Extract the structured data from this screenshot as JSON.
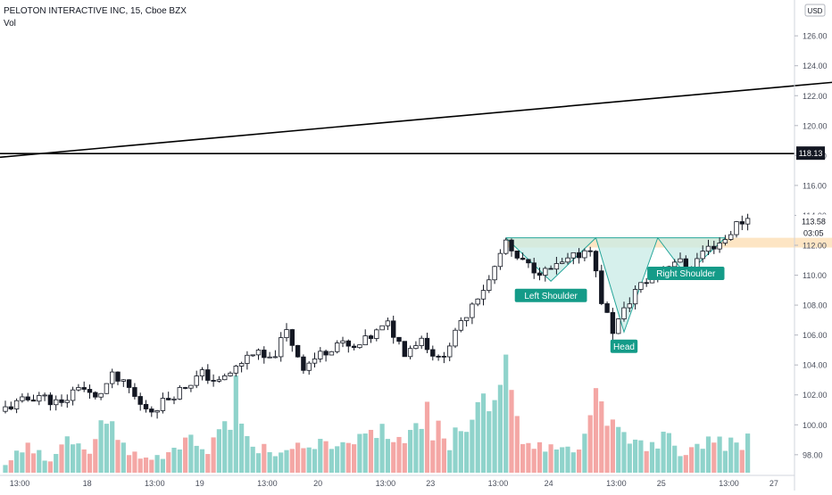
{
  "header": {
    "title": "PELOTON INTERACTIVE INC, 15, Cboe BZX",
    "volume_label": "Vol"
  },
  "currency": "USD",
  "price_labels": {
    "resistance": "118.13",
    "last_price": "113.58",
    "countdown": "03:05"
  },
  "colors": {
    "up": "#26a69a",
    "down": "#ef5350",
    "vol_up": "#8fd3cb",
    "vol_down": "#f4a7a5",
    "pattern_fill": "#c8ebe6",
    "pattern_line": "#26a69a",
    "neckline_zone": "#fde5c4",
    "label_bg": "#149b88"
  },
  "chart_data": {
    "type": "candlestick",
    "title": "PELOTON INTERACTIVE INC, 15, Cboe BZX",
    "ylim": [
      96.5,
      127.5
    ],
    "y_ticks": [
      98,
      100,
      102,
      104,
      106,
      108,
      110,
      112,
      114,
      116,
      118,
      120,
      122,
      124,
      126
    ],
    "x_tick_labels": [
      "13:00",
      "18",
      "13:00",
      "19",
      "13:00",
      "20",
      "13:00",
      "23",
      "13:00",
      "24",
      "13:00",
      "25",
      "13:00",
      "27"
    ],
    "grid": false,
    "close_path": [
      [
        0,
        101.1
      ],
      [
        6,
        102.0
      ],
      [
        10,
        101.3
      ],
      [
        13,
        102.7
      ],
      [
        16,
        101.7
      ],
      [
        19,
        103.2
      ],
      [
        22,
        102.4
      ],
      [
        24,
        101.3
      ],
      [
        26,
        101.0
      ],
      [
        29,
        101.8
      ],
      [
        32,
        102.6
      ],
      [
        35,
        103.4
      ],
      [
        38,
        102.8
      ],
      [
        41,
        103.8
      ],
      [
        44,
        104.9
      ],
      [
        47,
        104.2
      ],
      [
        50,
        106.2
      ],
      [
        53,
        103.9
      ],
      [
        56,
        104.7
      ],
      [
        59,
        105.5
      ],
      [
        62,
        105.0
      ],
      [
        65,
        105.9
      ],
      [
        68,
        106.7
      ],
      [
        71,
        104.9
      ],
      [
        74,
        105.8
      ],
      [
        77,
        104.3
      ],
      [
        80,
        106.0
      ],
      [
        83,
        108.2
      ],
      [
        86,
        109.6
      ],
      [
        89,
        112.3
      ],
      [
        90,
        111.3
      ],
      [
        93,
        110.6
      ],
      [
        96,
        110.2
      ],
      [
        99,
        110.7
      ],
      [
        102,
        111.4
      ],
      [
        104,
        111.9
      ],
      [
        106,
        108.3
      ],
      [
        108,
        106.3
      ],
      [
        110,
        107.6
      ],
      [
        112,
        109.0
      ],
      [
        114,
        109.6
      ],
      [
        116,
        110.3
      ],
      [
        119,
        111.0
      ],
      [
        122,
        110.5
      ],
      [
        124,
        111.6
      ],
      [
        126,
        112.0
      ],
      [
        128,
        112.4
      ],
      [
        130,
        113.4
      ],
      [
        132,
        113.8
      ]
    ],
    "volume_profile": [
      [
        0,
        0.8
      ],
      [
        4,
        1.8
      ],
      [
        8,
        1.2
      ],
      [
        12,
        2.5
      ],
      [
        16,
        2.0
      ],
      [
        18,
        4.2
      ],
      [
        20,
        2.5
      ],
      [
        22,
        1.2
      ],
      [
        24,
        1.5
      ],
      [
        27,
        1.0
      ],
      [
        30,
        1.4
      ],
      [
        33,
        2.3
      ],
      [
        36,
        1.8
      ],
      [
        39,
        3.2
      ],
      [
        41,
        6.0
      ],
      [
        43,
        3.5
      ],
      [
        45,
        2.0
      ],
      [
        48,
        1.5
      ],
      [
        51,
        2.2
      ],
      [
        54,
        1.6
      ],
      [
        57,
        2.5
      ],
      [
        60,
        1.7
      ],
      [
        63,
        2.1
      ],
      [
        66,
        3.2
      ],
      [
        69,
        2.6
      ],
      [
        72,
        2.4
      ],
      [
        75,
        4.5
      ],
      [
        77,
        3.0
      ],
      [
        79,
        2.6
      ],
      [
        82,
        3.2
      ],
      [
        85,
        4.5
      ],
      [
        86,
        6.6
      ],
      [
        88,
        8.9
      ],
      [
        90,
        5.0
      ],
      [
        92,
        2.0
      ],
      [
        96,
        1.6
      ],
      [
        100,
        1.6
      ],
      [
        103,
        2.5
      ],
      [
        105,
        6.2
      ],
      [
        107,
        5.4
      ],
      [
        109,
        3.5
      ],
      [
        111,
        2.4
      ],
      [
        114,
        2.0
      ],
      [
        117,
        2.8
      ],
      [
        120,
        1.6
      ],
      [
        124,
        2.1
      ],
      [
        128,
        2.2
      ],
      [
        132,
        2.6
      ]
    ],
    "resistance_line": 118.13,
    "trend_line": {
      "start": [
        -44,
        116.43
      ],
      "end": [
        213,
        125.12
      ]
    },
    "neckline_zone": {
      "x": [
        89,
        158
      ],
      "y": [
        111.85,
        112.5
      ]
    },
    "pattern": {
      "points": [
        [
          89,
          112.5
        ],
        [
          97,
          109.6
        ],
        [
          105,
          112.5
        ],
        [
          110,
          106.2
        ],
        [
          116,
          112.5
        ],
        [
          121,
          110.0
        ],
        [
          128,
          112.5
        ]
      ],
      "labels": [
        "Left Shoulder",
        "Head",
        "Right Shoulder"
      ]
    }
  }
}
